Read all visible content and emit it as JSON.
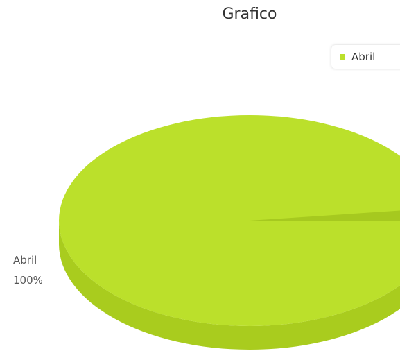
{
  "chart_data": {
    "type": "pie",
    "title": "Grafico",
    "categories": [
      "Abril"
    ],
    "values": [
      100
    ],
    "data_labels": [
      {
        "name": "Abril",
        "percent": "100%"
      }
    ],
    "legend": {
      "placement": "top-right",
      "entries": [
        "Abril"
      ]
    },
    "three_d": true,
    "colors": {
      "slice_top": "#bbe02b",
      "slice_side": "#a9cc1e",
      "slice_edge": "#a6c91f"
    }
  }
}
